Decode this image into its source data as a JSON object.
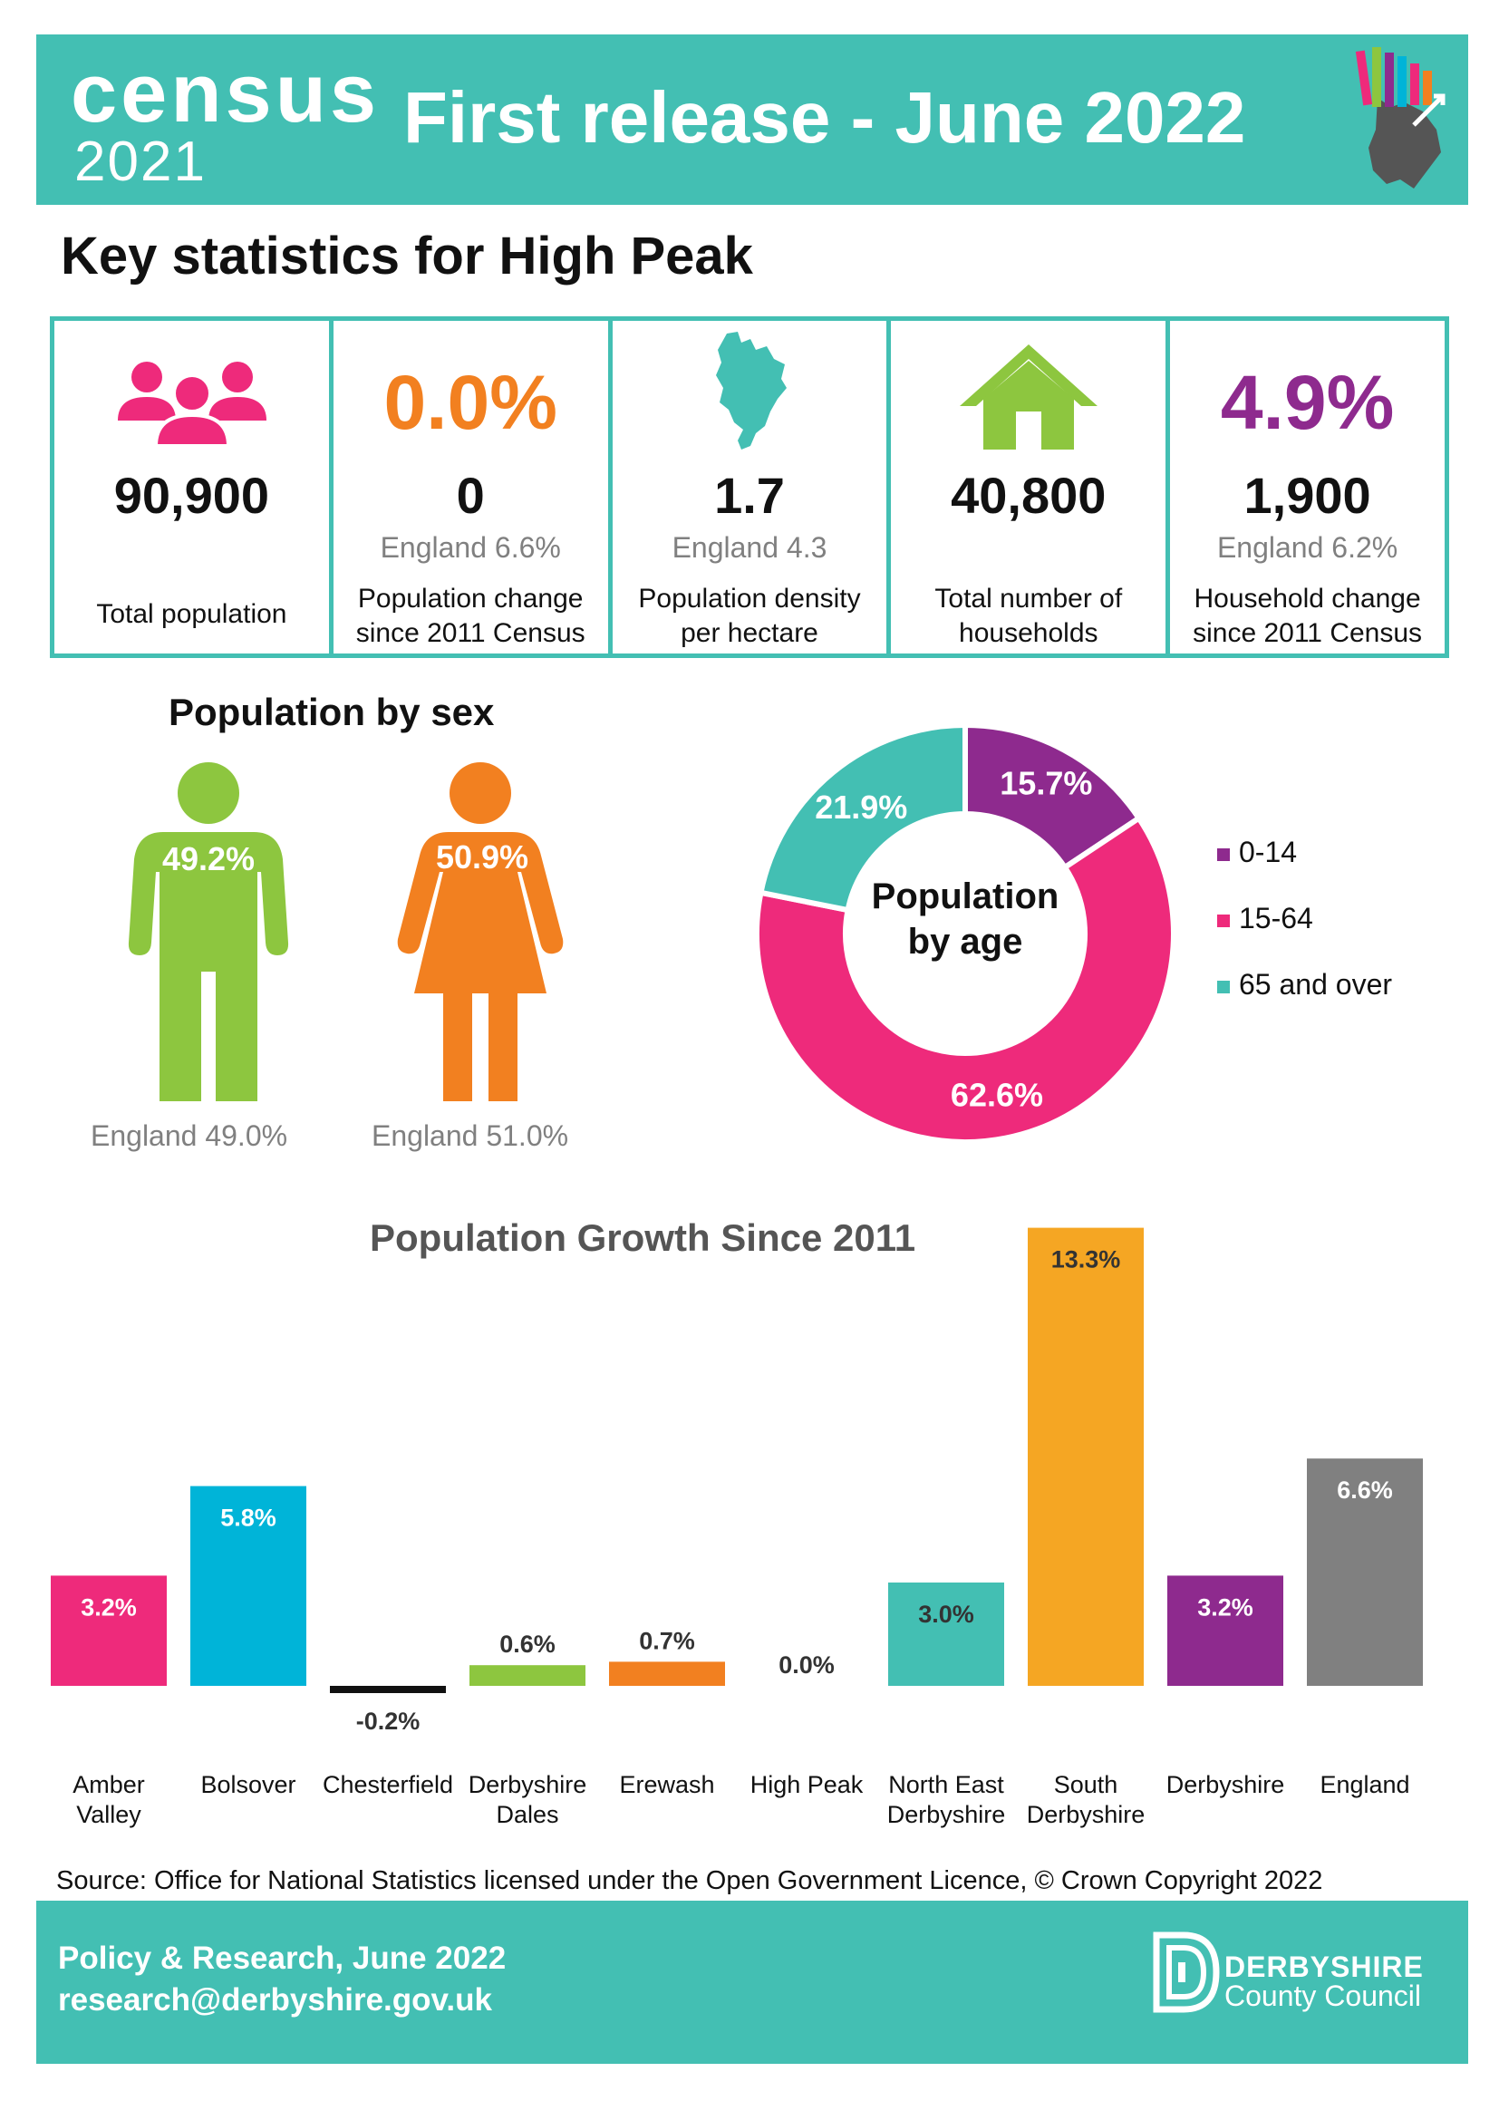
{
  "header": {
    "census_word": "census",
    "census_year": "2021",
    "title": "First release - June 2022"
  },
  "key_title": "Key statistics for High Peak",
  "stats": [
    {
      "icon": "people-icon",
      "value": "90,900",
      "england": "",
      "label": "Total population"
    },
    {
      "big": "0.0%",
      "big_color": "#f28020",
      "value": "0",
      "england": "England 6.6%",
      "label_1": "Population change",
      "label_2": "since 2011 Census"
    },
    {
      "icon": "derbyshire-map-icon",
      "value": "1.7",
      "england": "England 4.3",
      "label_1": "Population density",
      "label_2": "per hectare"
    },
    {
      "icon": "house-icon",
      "value": "40,800",
      "england": "",
      "label_1": "Total number of",
      "label_2": "households"
    },
    {
      "big": "4.9%",
      "big_color": "#8e2a8e",
      "value": "1,900",
      "england": "England 6.2%",
      "label_1": "Household change",
      "label_2": "since 2011 Census"
    }
  ],
  "sex": {
    "title": "Population by sex",
    "male_pct": "49.2%",
    "female_pct": "50.9%",
    "male_england": "England 49.0%",
    "female_england": "England 51.0%",
    "male_color": "#8dc63f",
    "female_color": "#f28020"
  },
  "age": {
    "title_1": "Population",
    "title_2": "by age",
    "legend": [
      "0-14",
      "15-64",
      "65 and over"
    ]
  },
  "bar_title": "Population Growth Since 2011",
  "chart_data": [
    {
      "type": "pie",
      "title": "Population by age",
      "categories": [
        "0-14",
        "15-64",
        "65 and over"
      ],
      "values": [
        15.7,
        62.6,
        21.9
      ],
      "labels": [
        "15.7%",
        "62.6%",
        "21.9%"
      ],
      "colors": [
        "#8e2a8e",
        "#ee2a7b",
        "#43bfb3"
      ],
      "legend": "right"
    },
    {
      "type": "bar",
      "title": "Population Growth Since 2011",
      "categories": [
        [
          "Amber",
          "Valley"
        ],
        [
          "Bolsover"
        ],
        [
          "Chesterfield"
        ],
        [
          "Derbyshire",
          "Dales"
        ],
        [
          "Erewash"
        ],
        [
          "High Peak"
        ],
        [
          "North East",
          "Derbyshire"
        ],
        [
          "South",
          "Derbyshire"
        ],
        [
          "Derbyshire"
        ],
        [
          "England"
        ]
      ],
      "values": [
        3.2,
        5.8,
        -0.2,
        0.6,
        0.7,
        0.0,
        3.0,
        13.3,
        3.2,
        6.6
      ],
      "labels": [
        "3.2%",
        "5.8%",
        "-0.2%",
        "0.6%",
        "0.7%",
        "0.0%",
        "3.0%",
        "13.3%",
        "3.2%",
        "6.6%"
      ],
      "colors": [
        "#ee2a7b",
        "#00b4d8",
        "#111111",
        "#8dc63f",
        "#f28020",
        "#43bfb3",
        "#43bfb3",
        "#f5a623",
        "#8e2a8e",
        "#808080"
      ],
      "label_inside": [
        true,
        true,
        false,
        false,
        false,
        false,
        true,
        true,
        true,
        true
      ],
      "label_color": [
        "#ffffff",
        "#ffffff",
        "#333333",
        "#333333",
        "#333333",
        "#333333",
        "#333333",
        "#333333",
        "#ffffff",
        "#ffffff"
      ],
      "grid": false
    }
  ],
  "source": "Source: Office for National Statistics licensed under the Open Government Licence, © Crown Copyright 2022",
  "footer": {
    "line1": "Policy & Research, June 2022",
    "line2": "research@derbyshire.gov.uk",
    "council_1": "DERBYSHIRE",
    "council_2": "County Council"
  }
}
